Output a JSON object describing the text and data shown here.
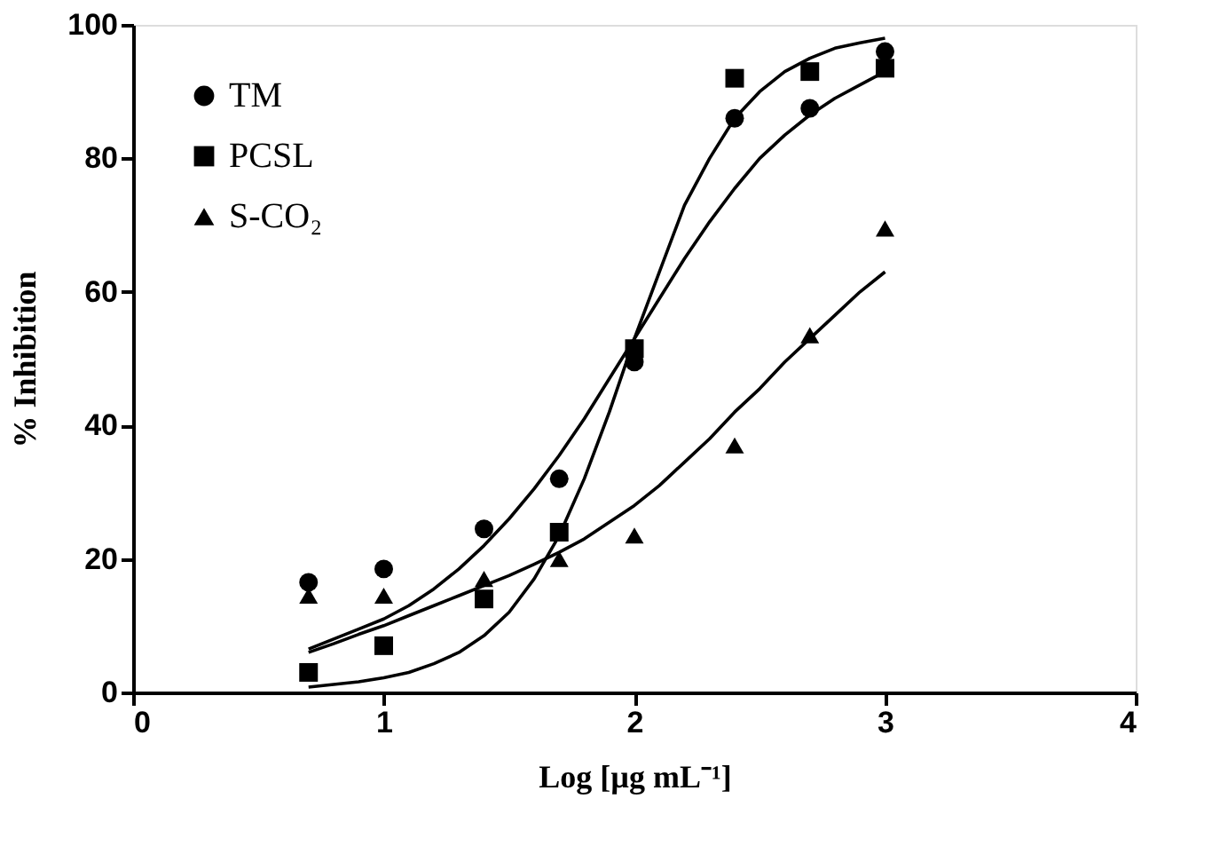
{
  "chart_data": {
    "type": "scatter",
    "xlabel": "Log [µg mL⁻¹]",
    "ylabel": "% Inhibition",
    "xlim": [
      0,
      4
    ],
    "xticks": [
      0,
      1,
      2,
      3,
      4
    ],
    "ylim": [
      0,
      100
    ],
    "yticks": [
      0,
      20,
      40,
      60,
      80,
      100
    ],
    "grid": false,
    "legend": "top left",
    "x": [
      0.7,
      1.0,
      1.4,
      1.7,
      2.0,
      2.4,
      2.7,
      3.0
    ],
    "series": [
      {
        "name": "TM",
        "color": "#000000",
        "marker": "circle",
        "values": [
          16.5,
          18.5,
          24.5,
          32,
          49.5,
          86,
          87.5,
          96
        ]
      },
      {
        "name": "PCSL",
        "color": "#000000",
        "marker": "square",
        "values": [
          3,
          7,
          14,
          24,
          51.5,
          92,
          93,
          93.5
        ]
      },
      {
        "name": "S-CO₂",
        "color": "#000000",
        "marker": "triangle",
        "values": [
          14.5,
          14.5,
          17,
          20,
          23.5,
          37,
          53.5,
          69.5
        ]
      },
      {
        "type": "line",
        "color": "#000000",
        "x": [
          0.7,
          0.8,
          0.9,
          1.0,
          1.1,
          1.2,
          1.3,
          1.4,
          1.5,
          1.6,
          1.7,
          1.8,
          1.9,
          2.0,
          2.1,
          2.2,
          2.3,
          2.4,
          2.5,
          2.6,
          2.7,
          2.8,
          2.9,
          3.0
        ],
        "values": [
          6.5,
          8,
          9.5,
          11,
          13,
          15.5,
          18.5,
          22,
          26,
          30.5,
          35.5,
          41,
          47,
          53,
          59,
          65,
          70.5,
          75.5,
          80,
          83.5,
          86.5,
          89,
          91,
          93
        ]
      },
      {
        "type": "line",
        "color": "#000000",
        "x": [
          0.7,
          0.8,
          0.9,
          1.0,
          1.1,
          1.2,
          1.3,
          1.4,
          1.5,
          1.6,
          1.7,
          1.8,
          1.9,
          2.0,
          2.1,
          2.2,
          2.3,
          2.4,
          2.5,
          2.6,
          2.7,
          2.8,
          2.9,
          3.0
        ],
        "values": [
          0.8,
          1.2,
          1.6,
          2.2,
          3,
          4.3,
          6,
          8.5,
          12,
          17,
          23.5,
          32,
          42,
          53,
          63,
          73,
          80,
          86,
          90,
          93,
          95,
          96.5,
          97.3,
          98
        ]
      },
      {
        "type": "line",
        "color": "#000000",
        "x": [
          0.7,
          0.8,
          0.9,
          1.0,
          1.1,
          1.2,
          1.3,
          1.4,
          1.5,
          1.6,
          1.7,
          1.8,
          1.9,
          2.0,
          2.1,
          2.2,
          2.3,
          2.4,
          2.5,
          2.6,
          2.7,
          2.8,
          2.9,
          3.0
        ],
        "values": [
          6,
          7.3,
          8.7,
          10,
          11.5,
          13,
          14.5,
          16,
          17.5,
          19.2,
          21,
          23,
          25.5,
          28,
          31,
          34.5,
          38,
          42,
          45.5,
          49.5,
          53,
          56.5,
          60,
          63
        ]
      }
    ]
  }
}
